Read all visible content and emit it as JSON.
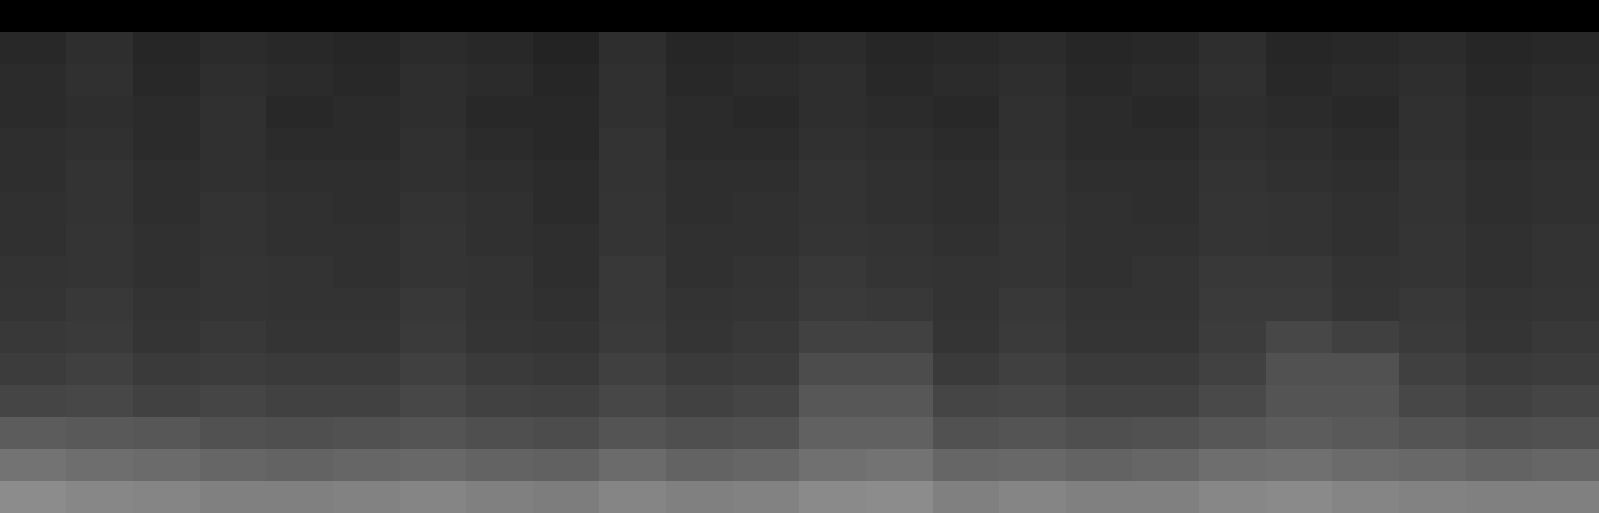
{
  "chart_data": {
    "type": "heatmap",
    "color": "gray",
    "tick_labels": false,
    "clim": [
      0,
      1
    ],
    "cells": [
      [
        0,
        0,
        0,
        0,
        0,
        0,
        0,
        0,
        0,
        0,
        0,
        0,
        0,
        0,
        0,
        0,
        0,
        0,
        0,
        0,
        0,
        0,
        0,
        0
      ],
      [
        0.16,
        0.18,
        0.15,
        0.17,
        0.16,
        0.15,
        0.17,
        0.16,
        0.14,
        0.18,
        0.15,
        0.16,
        0.17,
        0.15,
        0.16,
        0.17,
        0.15,
        0.16,
        0.18,
        0.15,
        0.16,
        0.17,
        0.15,
        0.16
      ],
      [
        0.17,
        0.19,
        0.16,
        0.18,
        0.17,
        0.16,
        0.18,
        0.17,
        0.15,
        0.19,
        0.16,
        0.17,
        0.18,
        0.16,
        0.17,
        0.18,
        0.16,
        0.17,
        0.19,
        0.16,
        0.17,
        0.18,
        0.16,
        0.17
      ],
      [
        0.17,
        0.18,
        0.17,
        0.19,
        0.16,
        0.17,
        0.18,
        0.16,
        0.16,
        0.19,
        0.17,
        0.16,
        0.18,
        0.17,
        0.16,
        0.19,
        0.17,
        0.16,
        0.18,
        0.17,
        0.16,
        0.19,
        0.17,
        0.18
      ],
      [
        0.18,
        0.19,
        0.17,
        0.19,
        0.17,
        0.17,
        0.19,
        0.17,
        0.16,
        0.2,
        0.17,
        0.17,
        0.19,
        0.18,
        0.17,
        0.19,
        0.17,
        0.17,
        0.19,
        0.18,
        0.17,
        0.19,
        0.17,
        0.18
      ],
      [
        0.18,
        0.2,
        0.18,
        0.19,
        0.18,
        0.18,
        0.19,
        0.18,
        0.17,
        0.2,
        0.18,
        0.18,
        0.2,
        0.19,
        0.18,
        0.2,
        0.18,
        0.18,
        0.2,
        0.19,
        0.18,
        0.2,
        0.18,
        0.19
      ],
      [
        0.19,
        0.2,
        0.18,
        0.2,
        0.19,
        0.18,
        0.2,
        0.19,
        0.17,
        0.21,
        0.18,
        0.19,
        0.2,
        0.19,
        0.18,
        0.2,
        0.19,
        0.18,
        0.21,
        0.2,
        0.19,
        0.2,
        0.18,
        0.19
      ],
      [
        0.19,
        0.21,
        0.19,
        0.2,
        0.19,
        0.19,
        0.21,
        0.19,
        0.18,
        0.21,
        0.19,
        0.19,
        0.21,
        0.2,
        0.19,
        0.21,
        0.19,
        0.19,
        0.21,
        0.2,
        0.19,
        0.21,
        0.19,
        0.2
      ],
      [
        0.2,
        0.21,
        0.19,
        0.21,
        0.2,
        0.19,
        0.21,
        0.2,
        0.18,
        0.22,
        0.19,
        0.2,
        0.22,
        0.21,
        0.2,
        0.21,
        0.19,
        0.2,
        0.22,
        0.22,
        0.2,
        0.21,
        0.19,
        0.2
      ],
      [
        0.21,
        0.22,
        0.2,
        0.21,
        0.2,
        0.2,
        0.22,
        0.2,
        0.19,
        0.22,
        0.2,
        0.21,
        0.23,
        0.22,
        0.2,
        0.22,
        0.2,
        0.2,
        0.23,
        0.23,
        0.21,
        0.22,
        0.2,
        0.21
      ],
      [
        0.22,
        0.23,
        0.21,
        0.22,
        0.21,
        0.21,
        0.23,
        0.21,
        0.2,
        0.23,
        0.21,
        0.22,
        0.26,
        0.26,
        0.21,
        0.23,
        0.21,
        0.21,
        0.24,
        0.28,
        0.25,
        0.23,
        0.21,
        0.22
      ],
      [
        0.24,
        0.25,
        0.23,
        0.24,
        0.23,
        0.23,
        0.25,
        0.23,
        0.22,
        0.25,
        0.23,
        0.24,
        0.3,
        0.3,
        0.23,
        0.25,
        0.23,
        0.23,
        0.26,
        0.32,
        0.32,
        0.25,
        0.23,
        0.24
      ],
      [
        0.27,
        0.28,
        0.26,
        0.27,
        0.26,
        0.26,
        0.28,
        0.26,
        0.25,
        0.28,
        0.26,
        0.27,
        0.34,
        0.34,
        0.27,
        0.28,
        0.26,
        0.26,
        0.29,
        0.33,
        0.33,
        0.28,
        0.26,
        0.27
      ],
      [
        0.36,
        0.35,
        0.34,
        0.32,
        0.31,
        0.32,
        0.33,
        0.31,
        0.3,
        0.33,
        0.31,
        0.32,
        0.38,
        0.38,
        0.32,
        0.33,
        0.31,
        0.32,
        0.34,
        0.36,
        0.35,
        0.33,
        0.31,
        0.32
      ],
      [
        0.45,
        0.43,
        0.42,
        0.4,
        0.39,
        0.4,
        0.41,
        0.39,
        0.38,
        0.42,
        0.39,
        0.4,
        0.44,
        0.45,
        0.4,
        0.41,
        0.39,
        0.4,
        0.43,
        0.44,
        0.42,
        0.41,
        0.39,
        0.4
      ],
      [
        0.55,
        0.53,
        0.52,
        0.5,
        0.5,
        0.51,
        0.52,
        0.5,
        0.49,
        0.52,
        0.5,
        0.51,
        0.54,
        0.55,
        0.5,
        0.52,
        0.5,
        0.5,
        0.53,
        0.54,
        0.52,
        0.51,
        0.5,
        0.5
      ]
    ]
  }
}
